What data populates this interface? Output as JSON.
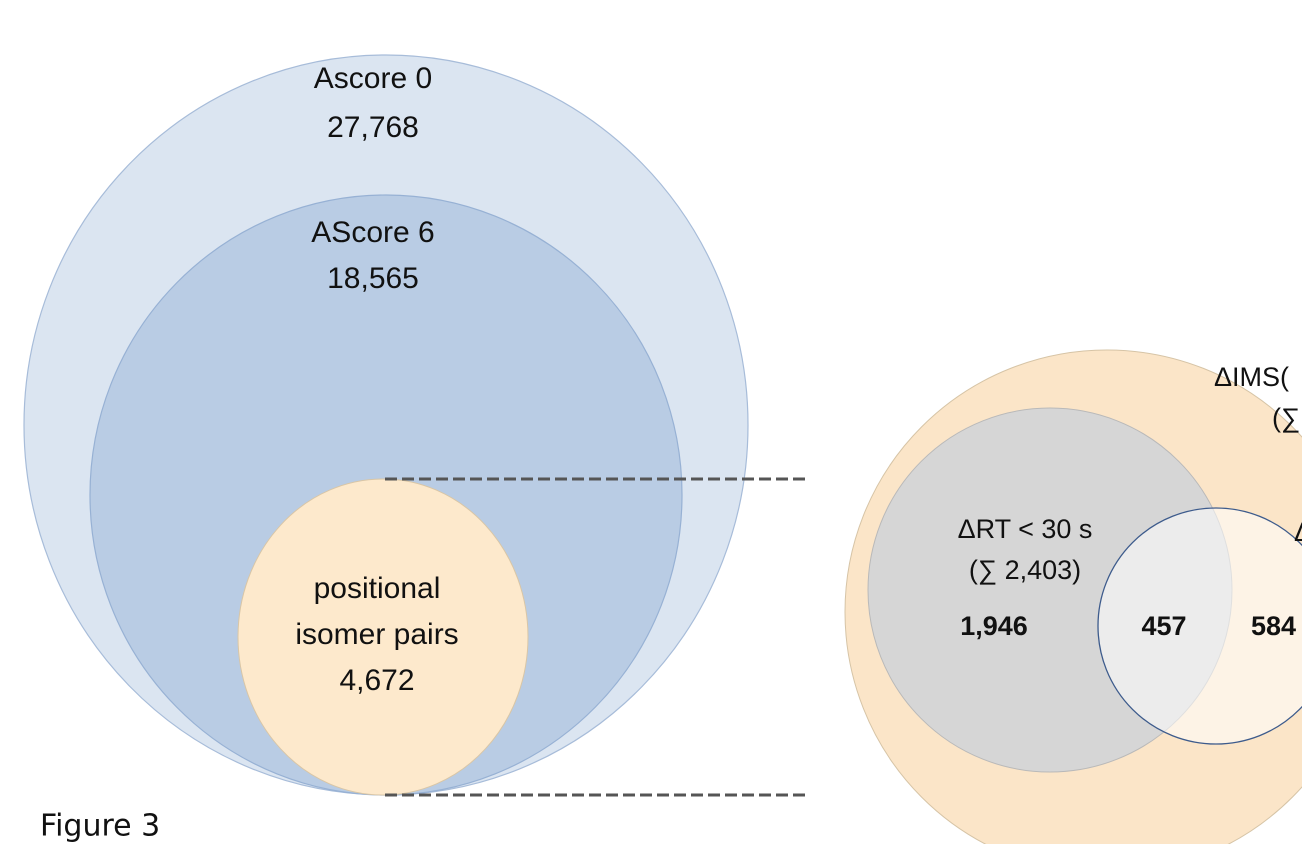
{
  "left_diagram": {
    "outer": {
      "label": "Ascore 0",
      "count": "27,768"
    },
    "middle": {
      "label": "AScore 6",
      "count": "18,565"
    },
    "inner": {
      "label_lines": [
        "positional",
        "isomer pairs"
      ],
      "count": "4,672"
    }
  },
  "right_diagram": {
    "outer": {
      "label": "ΔIMS(",
      "sum": "(∑"
    },
    "left_set": {
      "label": "ΔRT < 30 s",
      "sum": "(∑ 2,403)",
      "only": "1,946"
    },
    "overlap": "457",
    "right_set": {
      "label": "Δ",
      "only": "584"
    }
  },
  "caption": "Figure 3"
}
